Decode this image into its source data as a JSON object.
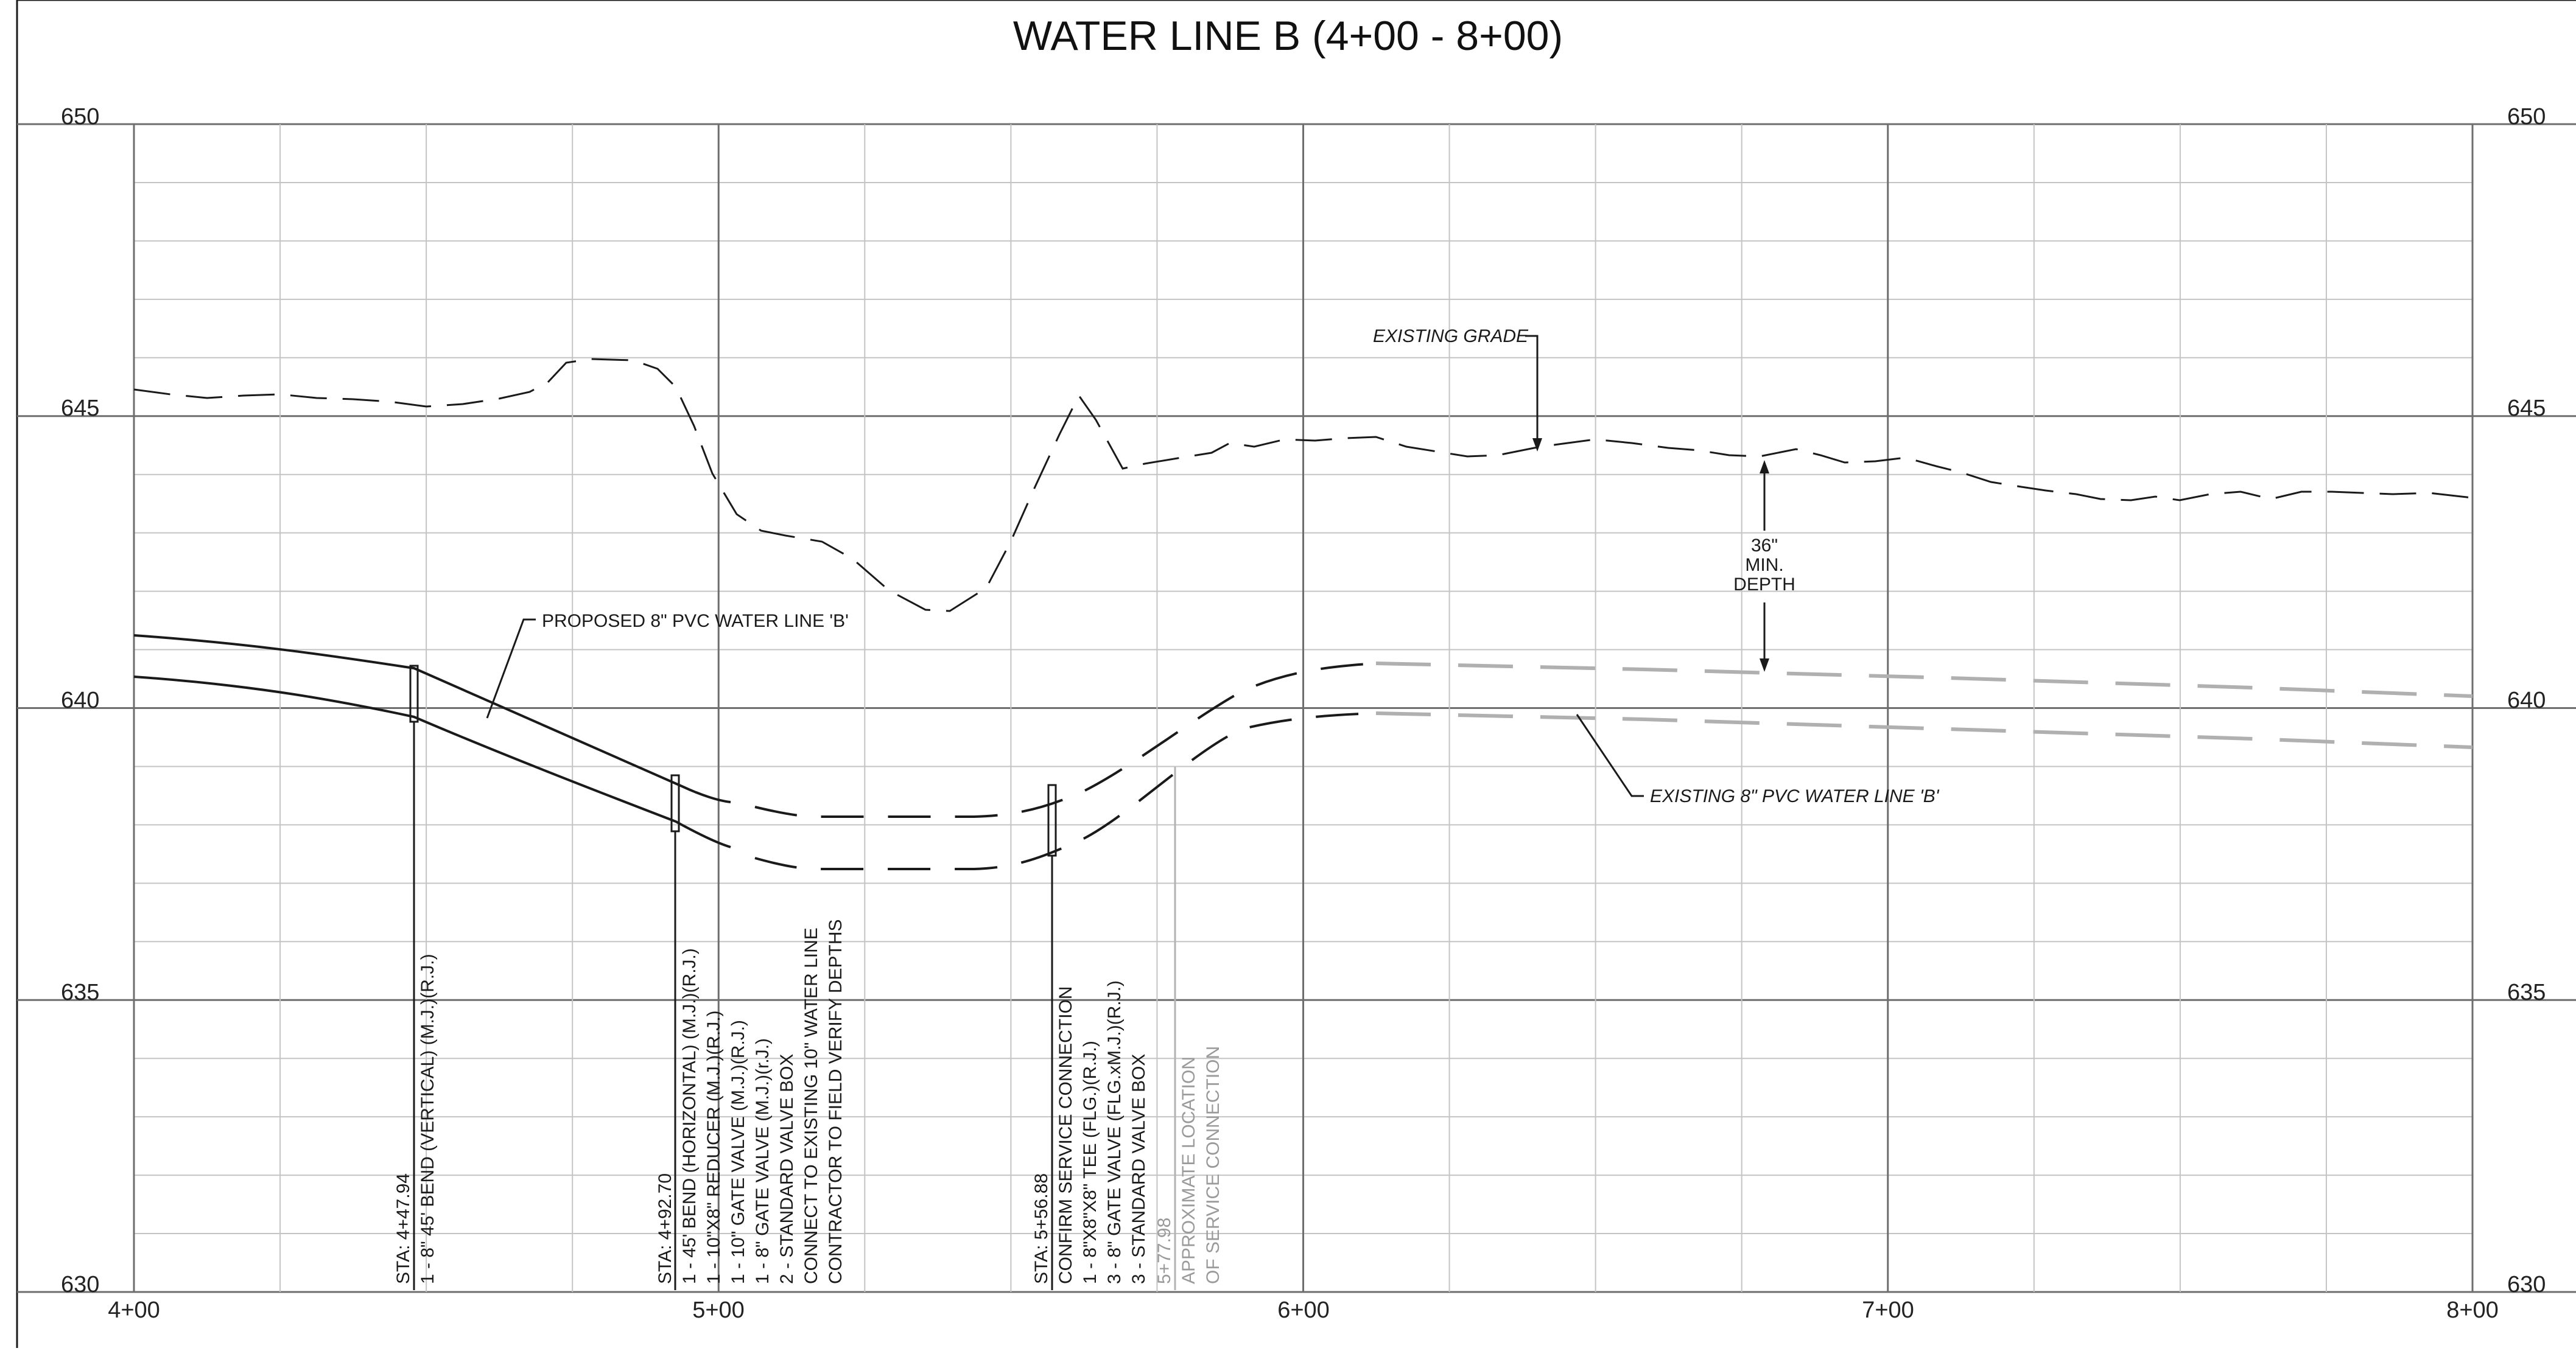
{
  "title": "WATER LINE B (4+00 - 8+00)",
  "elevations": [
    "650",
    "645",
    "640",
    "635",
    "630"
  ],
  "stations": [
    "4+00",
    "5+00",
    "6+00",
    "7+00",
    "8+00"
  ],
  "labels": {
    "existing_grade": "EXISTING GRADE",
    "proposed_line": "PROPOSED 8\" PVC WATER LINE 'B'",
    "existing_line": "EXISTING 8\" PVC WATER LINE 'B'",
    "depth": [
      "36\"",
      "MIN.",
      "DEPTH"
    ]
  },
  "callouts": {
    "sta_44794": [
      "STA: 4+47.94",
      "1 - 8\" 45' BEND (VERTICAL) (M.J.)(R.J.)"
    ],
    "sta_49270": [
      "STA: 4+92.70",
      "1 - 45' BEND (HORIZONTAL) (M.J.)(R.J.)",
      "1 - 10\"X8\" REDUCER (M.J.)(R.J.)",
      "1 - 10\" GATE VALVE (M.J.)(R.J.)",
      "1 - 8\" GATE VALVE (M.J.)(r.J.)",
      "2 - STANDARD VALVE BOX",
      "CONNECT TO EXISTING 10\" WATER LINE",
      "CONTRACTOR TO FIELD VERIFY DEPTHS"
    ],
    "sta_55688": [
      "STA: 5+56.88",
      "CONFIRM SERVICE CONNECTION",
      "1 - 8\"X8\"X8\" TEE (FLG.)(R.J.)",
      "3 - 8\" GATE VALVE (FLG.xM.J.)(R.J.)",
      "3 - STANDARD VALVE BOX"
    ],
    "sta_57798": [
      "5+77.98",
      "APPROXIMATE LOCATION",
      "OF SERVICE CONNECTION"
    ]
  },
  "colors": {
    "line": "#1a1a1a",
    "grid": "#9a9a9a",
    "faint": "#b3b3b3"
  }
}
